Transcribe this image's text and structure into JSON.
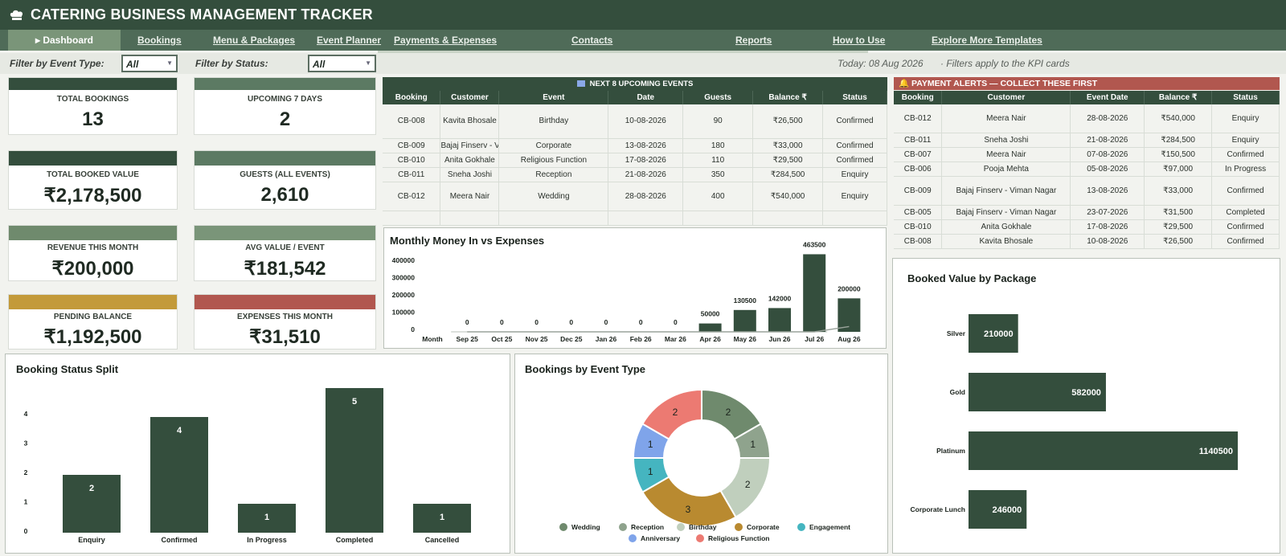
{
  "header": {
    "title": "CATERING BUSINESS MANAGEMENT TRACKER",
    "logo": "chef-hat-icon"
  },
  "nav": {
    "tabs": [
      {
        "label": "▸ Dashboard",
        "active": true
      },
      {
        "label": "Bookings"
      },
      {
        "label": "Menu & Packages"
      },
      {
        "label": "Event Planner"
      },
      {
        "label": "Payments & Expenses"
      },
      {
        "label": "Contacts"
      },
      {
        "label": "Reports"
      },
      {
        "label": "How to Use"
      },
      {
        "label": "Explore More Templates"
      }
    ]
  },
  "filters": {
    "event_type_label": "Filter by Event Type:",
    "event_type_value": "All",
    "status_label": "Filter by Status:",
    "status_value": "All",
    "today": "Today:  08 Aug 2026",
    "note": "·    Filters apply to the KPI cards"
  },
  "colors": {
    "dark_green": "#344e3d",
    "mid_green": "#5c7a63",
    "sage": "#7a9579",
    "gold": "#c39a3a",
    "red": "#b1574f"
  },
  "kpis": [
    {
      "label": "TOTAL BOOKINGS",
      "value": "13"
    },
    {
      "label": "UPCOMING 7 DAYS",
      "value": "2"
    },
    {
      "label": "TOTAL BOOKED VALUE",
      "value": "₹2,178,500"
    },
    {
      "label": "GUESTS (ALL EVENTS)",
      "value": "2,610"
    },
    {
      "label": "REVENUE THIS MONTH",
      "value": "₹200,000"
    },
    {
      "label": "AVG VALUE / EVENT",
      "value": "₹181,542"
    },
    {
      "label": "PENDING BALANCE",
      "value": "₹1,192,500"
    },
    {
      "label": "EXPENSES THIS MONTH",
      "value": "₹31,510"
    }
  ],
  "upcoming": {
    "title": "NEXT 8 UPCOMING EVENTS",
    "columns": [
      "Booking",
      "Customer",
      "Event",
      "Date",
      "Guests",
      "Balance ₹",
      "Status"
    ],
    "rows": [
      [
        "CB-008",
        "Kavita Bhosale",
        "Birthday",
        "10-08-2026",
        "90",
        "₹26,500",
        "Confirmed"
      ],
      [
        "CB-009",
        "Bajaj Finserv - Viman Nagar",
        "Corporate",
        "13-08-2026",
        "180",
        "₹33,000",
        "Confirmed"
      ],
      [
        "CB-010",
        "Anita Gokhale",
        "Religious Function",
        "17-08-2026",
        "110",
        "₹29,500",
        "Confirmed"
      ],
      [
        "CB-011",
        "Sneha Joshi",
        "Reception",
        "21-08-2026",
        "350",
        "₹284,500",
        "Enquiry"
      ],
      [
        "CB-012",
        "Meera Nair",
        "Wedding",
        "28-08-2026",
        "400",
        "₹540,000",
        "Enquiry"
      ],
      [
        "",
        "",
        "",
        "",
        "",
        "",
        ""
      ]
    ]
  },
  "alerts": {
    "title": "PAYMENT ALERTS — COLLECT THESE FIRST",
    "columns": [
      "Booking",
      "Customer",
      "Event Date",
      "Balance ₹",
      "Status"
    ],
    "rows": [
      [
        "CB-012",
        "Meera Nair",
        "28-08-2026",
        "₹540,000",
        "Enquiry"
      ],
      [
        "CB-011",
        "Sneha Joshi",
        "21-08-2026",
        "₹284,500",
        "Enquiry"
      ],
      [
        "CB-007",
        "Meera Nair",
        "07-08-2026",
        "₹150,500",
        "Confirmed"
      ],
      [
        "CB-006",
        "Pooja Mehta",
        "05-08-2026",
        "₹97,000",
        "In Progress"
      ],
      [
        "CB-009",
        "Bajaj Finserv - Viman Nagar",
        "13-08-2026",
        "₹33,000",
        "Confirmed"
      ],
      [
        "CB-005",
        "Bajaj Finserv - Viman Nagar",
        "23-07-2026",
        "₹31,500",
        "Completed"
      ],
      [
        "CB-010",
        "Anita Gokhale",
        "17-08-2026",
        "₹29,500",
        "Confirmed"
      ],
      [
        "CB-008",
        "Kavita Bhosale",
        "10-08-2026",
        "₹26,500",
        "Confirmed"
      ]
    ]
  },
  "charts": {
    "money_title": "Monthly Money In vs Expenses",
    "status_title": "Booking Status Split",
    "type_title": "Bookings by Event Type",
    "package_title": "Booked Value by Package"
  },
  "chart_data": [
    {
      "type": "bar",
      "title": "Monthly Money In vs Expenses",
      "categories": [
        "Month",
        "Sep 25",
        "Oct 25",
        "Nov 25",
        "Dec 25",
        "Jan 26",
        "Feb 26",
        "Mar 26",
        "Apr 26",
        "May 26",
        "Jun 26",
        "Jul 26",
        "Aug 26"
      ],
      "series": [
        {
          "values": [
            null,
            0,
            0,
            0,
            0,
            0,
            0,
            0,
            50000,
            130500,
            142000,
            463500,
            200000
          ]
        },
        {
          "values": [
            null,
            0,
            0,
            0,
            0,
            0,
            0,
            0,
            0,
            0,
            0,
            0,
            31510
          ]
        }
      ],
      "yticks": [
        "400000",
        "300000",
        "200000",
        "100000",
        "0"
      ],
      "ylim": [
        0,
        480000
      ],
      "grid": false
    },
    {
      "type": "bar",
      "title": "Booking Status Split",
      "categories": [
        "Enquiry",
        "Confirmed",
        "In Progress",
        "Completed",
        "Cancelled"
      ],
      "values": [
        2,
        4,
        1,
        5,
        1
      ],
      "yticks": [
        "4",
        "3",
        "2",
        "1",
        "0"
      ],
      "ylim": [
        0,
        5.5
      ],
      "grid": false
    },
    {
      "type": "pie",
      "title": "Bookings by Event Type",
      "categories": [
        "Wedding",
        "Reception",
        "Birthday",
        "Corporate",
        "Engagement",
        "Anniversary",
        "Religious Function"
      ],
      "values": [
        2,
        1,
        2,
        3,
        1,
        1,
        2
      ],
      "colors": [
        "#6f8a6d",
        "#8fa38d",
        "#c0cfbd",
        "#b98a30",
        "#45b5c0",
        "#7fa4ea",
        "#ec7a72"
      ],
      "legend": "bottom"
    },
    {
      "type": "bar",
      "orientation": "horizontal",
      "title": "Booked Value by Package",
      "categories": [
        "Silver",
        "Gold",
        "Platinum",
        "Corporate Lunch"
      ],
      "values": [
        210000,
        582000,
        1140500,
        246000
      ],
      "xlim": [
        0,
        1200000
      ],
      "grid": false
    }
  ]
}
